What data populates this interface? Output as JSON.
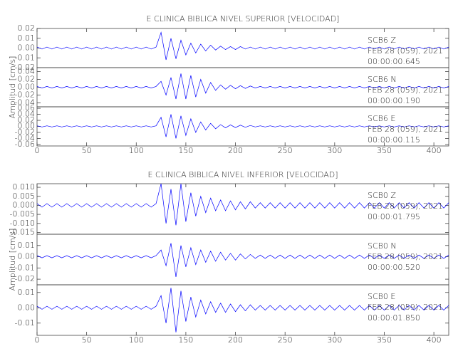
{
  "chart_data": [
    {
      "type": "line",
      "title": "E CLINICA BIBLICA NIVEL SUPERIOR [VELOCIDAD]",
      "y_label": "Amplitud [cm/s]",
      "color": "#0000ff",
      "x": [
        0,
        5,
        10,
        15,
        20,
        25,
        30,
        35,
        40,
        45,
        50,
        55,
        60,
        65,
        70,
        75,
        80,
        85,
        90,
        95,
        100,
        105,
        110,
        115,
        120,
        125,
        130,
        135,
        140,
        145,
        150,
        155,
        160,
        165,
        170,
        175,
        180,
        185,
        190,
        195,
        200,
        205,
        210,
        215,
        220,
        225,
        230,
        235,
        240,
        245,
        250,
        255,
        260,
        265,
        270,
        275,
        280,
        285,
        290,
        295,
        300,
        305,
        310,
        315,
        320,
        325,
        330,
        335,
        340,
        345,
        350,
        355,
        360,
        365,
        370,
        375,
        380,
        385,
        390,
        395,
        400,
        405,
        410,
        415
      ],
      "xlim": [
        0,
        415
      ],
      "xticks": [
        0,
        50,
        100,
        150,
        200,
        250,
        300,
        350,
        400
      ],
      "panels": [
        {
          "station": "SCB6   Z",
          "date": "FEB 28 (059), 2021",
          "time": "00:00:00.645",
          "ylim": [
            -0.02,
            0.02
          ],
          "yticks": [
            0.02,
            0.01,
            {
              "value": 0,
              "label": "0.00"
            },
            -0.01,
            -0.02
          ],
          "values": [
            0.001,
            -0.001,
            0.001,
            -0.001,
            0.001,
            -0.001,
            0.001,
            -0.001,
            0.001,
            -0.001,
            0.001,
            -0.001,
            0.001,
            -0.001,
            0.001,
            -0.001,
            0.001,
            -0.001,
            0.001,
            -0.001,
            0.001,
            -0.001,
            0.001,
            -0.001,
            0.001,
            0.016,
            -0.012,
            0.01,
            -0.011,
            0.008,
            -0.007,
            0.005,
            -0.005,
            0.004,
            -0.003,
            0.003,
            -0.002,
            0.002,
            -0.0015,
            0.0015,
            -0.0015,
            0.0015,
            -0.001,
            0.001,
            -0.001,
            0.001,
            -0.001,
            0.001,
            -0.001,
            0.001,
            -0.001,
            0.001,
            -0.001,
            0.001,
            -0.001,
            0.001,
            -0.001,
            0.001,
            -0.001,
            0.001,
            -0.001,
            0.001,
            -0.001,
            0.001,
            -0.001,
            0.001,
            -0.001,
            0.001,
            -0.001,
            0.001,
            -0.001,
            0.001,
            -0.001,
            0.001,
            -0.001,
            0.001,
            -0.001,
            0.001,
            -0.001,
            0.001,
            -0.001,
            0.001,
            -0.001,
            0.001
          ]
        },
        {
          "station": "SCB6   N",
          "date": "FEB 28 (059), 2021",
          "time": "00:00:00.190",
          "ylim": [
            -0.05,
            0.05
          ],
          "yticks": [
            0.04,
            0.02,
            {
              "value": 0,
              "label": "0.00"
            },
            -0.02,
            -0.04
          ],
          "values": [
            0.002,
            -0.002,
            0.002,
            -0.002,
            0.002,
            -0.002,
            0.002,
            -0.002,
            0.002,
            -0.002,
            0.002,
            -0.002,
            0.002,
            -0.002,
            0.002,
            -0.002,
            0.002,
            -0.002,
            0.002,
            -0.002,
            0.002,
            -0.002,
            0.002,
            -0.002,
            0.002,
            0.015,
            -0.02,
            0.025,
            -0.03,
            0.035,
            -0.03,
            0.03,
            -0.025,
            0.02,
            -0.015,
            0.012,
            -0.008,
            0.006,
            -0.005,
            0.005,
            -0.004,
            0.004,
            -0.003,
            0.003,
            -0.002,
            0.002,
            -0.002,
            0.002,
            -0.002,
            0.002,
            -0.002,
            0.002,
            -0.002,
            0.002,
            -0.002,
            0.002,
            -0.002,
            0.002,
            -0.002,
            0.002,
            -0.002,
            0.002,
            -0.002,
            0.002,
            -0.002,
            0.002,
            -0.002,
            0.002,
            -0.002,
            0.002,
            -0.002,
            0.002,
            -0.002,
            0.002,
            -0.002,
            0.002,
            -0.002,
            0.002,
            -0.002,
            0.002,
            -0.002,
            0.002,
            -0.002,
            0.002
          ]
        },
        {
          "station": "SCB6   E",
          "date": "FEB 28 (059), 2021",
          "time": "00:00:00.115",
          "ylim": [
            -0.065,
            0.065
          ],
          "yticks": [
            0.06,
            0.04,
            0.02,
            {
              "value": 0,
              "label": "0.00"
            },
            -0.02,
            -0.04,
            -0.06
          ],
          "values": [
            0.002,
            -0.002,
            0.002,
            -0.002,
            0.002,
            -0.002,
            0.002,
            -0.002,
            0.002,
            -0.002,
            0.002,
            -0.002,
            0.002,
            -0.002,
            0.002,
            -0.002,
            0.002,
            -0.002,
            0.002,
            -0.002,
            0.002,
            -0.002,
            0.002,
            -0.002,
            0.002,
            0.03,
            -0.035,
            0.04,
            -0.04,
            0.035,
            -0.03,
            0.025,
            -0.02,
            0.015,
            -0.012,
            0.01,
            -0.008,
            0.006,
            -0.005,
            0.005,
            -0.004,
            0.004,
            -0.003,
            0.003,
            -0.002,
            0.002,
            -0.002,
            0.002,
            -0.002,
            0.002,
            -0.002,
            0.002,
            -0.002,
            0.002,
            -0.002,
            0.002,
            -0.002,
            0.002,
            -0.002,
            0.002,
            -0.002,
            0.002,
            -0.002,
            0.002,
            -0.002,
            0.002,
            -0.002,
            0.002,
            -0.002,
            0.002,
            -0.002,
            0.002,
            -0.002,
            0.002,
            -0.002,
            0.002,
            -0.002,
            0.002,
            -0.002,
            0.002,
            -0.002,
            0.002,
            -0.002,
            0.002
          ]
        }
      ]
    },
    {
      "type": "line",
      "title": "E CLINICA BIBLICA NIVEL INFERIOR [VELOCIDAD]",
      "y_label": "Amplitud [cm/s]",
      "color": "#0000ff",
      "x": [
        0,
        5,
        10,
        15,
        20,
        25,
        30,
        35,
        40,
        45,
        50,
        55,
        60,
        65,
        70,
        75,
        80,
        85,
        90,
        95,
        100,
        105,
        110,
        115,
        120,
        125,
        130,
        135,
        140,
        145,
        150,
        155,
        160,
        165,
        170,
        175,
        180,
        185,
        190,
        195,
        200,
        205,
        210,
        215,
        220,
        225,
        230,
        235,
        240,
        245,
        250,
        255,
        260,
        265,
        270,
        275,
        280,
        285,
        290,
        295,
        300,
        305,
        310,
        315,
        320,
        325,
        330,
        335,
        340,
        345,
        350,
        355,
        360,
        365,
        370,
        375,
        380,
        385,
        390,
        395,
        400,
        405,
        410,
        415
      ],
      "xlim": [
        0,
        415
      ],
      "xticks": [
        0,
        50,
        100,
        150,
        200,
        250,
        300,
        350,
        400
      ],
      "panels": [
        {
          "station": "SCB0   Z",
          "date": "FEB 28 (059), 2021",
          "time": "00:00:01.795",
          "ylim": [
            -0.016,
            0.012
          ],
          "yticks": [
            {
              "value": 0.01,
              "label": "0.010"
            },
            0.005,
            {
              "value": 0,
              "label": "0.000"
            },
            -0.005,
            {
              "value": -0.01,
              "label": "-0.010"
            },
            -0.015
          ],
          "values": [
            0.001,
            -0.001,
            0.001,
            -0.001,
            0.001,
            -0.001,
            0.001,
            -0.001,
            0.001,
            -0.001,
            0.001,
            -0.001,
            0.001,
            -0.001,
            0.001,
            -0.001,
            0.001,
            -0.001,
            0.001,
            -0.001,
            0.001,
            -0.001,
            0.001,
            -0.001,
            0.001,
            0.012,
            -0.01,
            0.009,
            -0.011,
            0.012,
            -0.009,
            0.007,
            -0.006,
            0.005,
            -0.004,
            0.004,
            -0.003,
            0.003,
            -0.003,
            0.0025,
            -0.0025,
            0.002,
            -0.002,
            0.002,
            -0.0015,
            0.0015,
            -0.0015,
            0.0015,
            -0.0015,
            0.0015,
            -0.0015,
            0.0015,
            -0.0015,
            0.0015,
            -0.0015,
            0.0015,
            -0.0015,
            0.0015,
            -0.0015,
            0.0015,
            -0.0015,
            0.0015,
            -0.0015,
            0.0015,
            -0.0015,
            0.0015,
            -0.0015,
            0.0015,
            -0.0015,
            0.0015,
            -0.0015,
            0.0015,
            -0.0015,
            0.0015,
            -0.0015,
            0.0015,
            -0.0015,
            0.0015,
            -0.0015,
            0.0015,
            -0.0015,
            0.0015,
            -0.0015,
            0.0015
          ]
        },
        {
          "station": "SCB0   N",
          "date": "FEB 28 (059), 2021",
          "time": "00:00:00.520",
          "ylim": [
            -0.025,
            0.02
          ],
          "yticks": [
            0.01,
            {
              "value": 0,
              "label": "0.00"
            },
            -0.01,
            -0.02
          ],
          "values": [
            0.001,
            -0.001,
            0.001,
            -0.001,
            0.001,
            -0.001,
            0.001,
            -0.001,
            0.001,
            -0.001,
            0.001,
            -0.001,
            0.001,
            -0.001,
            0.001,
            -0.001,
            0.001,
            -0.001,
            0.001,
            -0.001,
            0.001,
            -0.001,
            0.001,
            -0.001,
            0.001,
            0.006,
            -0.008,
            0.012,
            -0.018,
            0.01,
            -0.009,
            0.008,
            -0.007,
            0.006,
            -0.005,
            0.005,
            -0.004,
            0.004,
            -0.003,
            0.003,
            -0.003,
            0.0025,
            -0.002,
            0.002,
            -0.0015,
            0.0015,
            -0.0015,
            0.0015,
            -0.0015,
            0.0015,
            -0.0015,
            0.0015,
            -0.0015,
            0.0015,
            -0.0015,
            0.0015,
            -0.0015,
            0.0015,
            -0.0015,
            0.0015,
            -0.0015,
            0.0015,
            -0.0015,
            0.0015,
            -0.0015,
            0.0015,
            -0.0015,
            0.0015,
            -0.0015,
            0.0015,
            -0.0015,
            0.0015,
            -0.0015,
            0.0015,
            -0.0015,
            0.0015,
            -0.0015,
            0.0015,
            -0.0015,
            0.0015,
            -0.0015,
            0.0015,
            -0.0015,
            0.0015
          ]
        },
        {
          "station": "SCB0   E",
          "date": "FEB 28 (059), 2021",
          "time": "00:00:01.850",
          "ylim": [
            -0.018,
            0.015
          ],
          "yticks": [
            0.01,
            {
              "value": 0,
              "label": "0.00"
            },
            -0.01
          ],
          "values": [
            0.001,
            -0.001,
            0.001,
            -0.001,
            0.001,
            -0.001,
            0.001,
            -0.001,
            0.001,
            -0.001,
            0.001,
            -0.001,
            0.001,
            -0.001,
            0.001,
            -0.001,
            0.001,
            -0.001,
            0.001,
            -0.001,
            0.001,
            -0.001,
            0.001,
            -0.001,
            0.001,
            0.008,
            -0.01,
            0.013,
            -0.016,
            0.011,
            -0.009,
            0.007,
            -0.006,
            0.005,
            -0.004,
            0.004,
            -0.003,
            0.003,
            -0.003,
            0.0025,
            -0.0025,
            0.002,
            -0.002,
            0.002,
            -0.0015,
            0.0015,
            -0.0015,
            0.0015,
            -0.0015,
            0.0015,
            -0.0015,
            0.0015,
            -0.0015,
            0.0015,
            -0.0015,
            0.0015,
            -0.0015,
            0.0015,
            -0.0015,
            0.0015,
            -0.0015,
            0.0015,
            -0.0015,
            0.0015,
            -0.0015,
            0.0015,
            -0.0015,
            0.0015,
            -0.0015,
            0.0015,
            -0.0015,
            0.0015,
            -0.0015,
            0.0015,
            -0.0015,
            0.0015,
            -0.0015,
            0.0015,
            -0.0015,
            0.0015,
            -0.0015,
            0.0015,
            -0.0015,
            0.0015
          ]
        }
      ]
    }
  ]
}
